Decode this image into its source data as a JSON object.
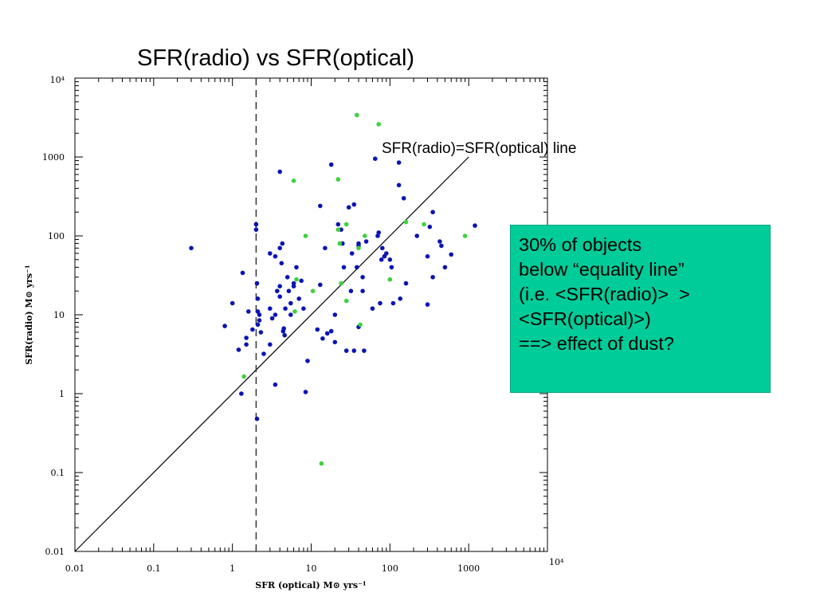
{
  "slide": {
    "title": "SFR(radio) vs SFR(optical)",
    "note_lines": [
      "30% of objects",
      "below “equality line”",
      "(i.e. <SFR(radio)>  >",
      "<SFR(optical)>)",
      "==> effect of dust?"
    ],
    "note_color": "#00cc99"
  },
  "chart_data": {
    "type": "scatter",
    "title": "",
    "xlabel": "SFR (optical) M⊙ yrs⁻¹",
    "ylabel": "SFR(radio) M⊙ yrs⁻¹",
    "xscale": "log",
    "yscale": "log",
    "xlim": [
      0.01,
      10000
    ],
    "ylim": [
      0.01,
      10000
    ],
    "x_tick_labels": [
      "0.01",
      "0.1",
      "1",
      "10",
      "100",
      "1000",
      "10⁴"
    ],
    "y_tick_labels": [
      "0.01",
      "0.1",
      "1",
      "10",
      "100",
      "1000",
      "10⁴"
    ],
    "grid": false,
    "reference_lines": [
      {
        "kind": "equality",
        "from": [
          0.01,
          0.01
        ],
        "to": [
          1000,
          1000
        ],
        "label": "SFR(radio)=SFR(optical) line",
        "style": "solid"
      },
      {
        "kind": "vertical",
        "x": 2.0,
        "style": "dashed"
      }
    ],
    "series": [
      {
        "color": "#0a14b4",
        "points": [
          [
            0.3,
            70
          ],
          [
            1.35,
            34
          ],
          [
            1.0,
            14
          ],
          [
            0.8,
            7.2
          ],
          [
            1.2,
            3.6
          ],
          [
            1.5,
            4.2
          ],
          [
            1.5,
            5.1
          ],
          [
            1.3,
            1.0
          ],
          [
            1.6,
            11
          ],
          [
            1.8,
            6.5
          ],
          [
            2.0,
            140
          ],
          [
            2.0,
            120
          ],
          [
            2.05,
            0.48
          ],
          [
            2.05,
            25
          ],
          [
            2.1,
            16
          ],
          [
            2.1,
            11
          ],
          [
            2.2,
            10
          ],
          [
            2.2,
            8.5
          ],
          [
            2.1,
            7.5
          ],
          [
            2.3,
            6.0
          ],
          [
            2.5,
            3.2
          ],
          [
            3.0,
            60
          ],
          [
            3.0,
            12
          ],
          [
            3.0,
            4.2
          ],
          [
            3.2,
            9.0
          ],
          [
            3.5,
            55
          ],
          [
            3.5,
            10
          ],
          [
            3.5,
            1.3
          ],
          [
            3.7,
            20
          ],
          [
            4.0,
            650
          ],
          [
            4.0,
            70
          ],
          [
            4.0,
            23
          ],
          [
            4.0,
            17
          ],
          [
            4.2,
            45
          ],
          [
            4.3,
            80
          ],
          [
            4.4,
            6.2
          ],
          [
            4.5,
            6.7
          ],
          [
            4.6,
            5.5
          ],
          [
            4.7,
            12
          ],
          [
            5.0,
            30
          ],
          [
            5.2,
            20
          ],
          [
            5.5,
            10
          ],
          [
            5.5,
            14
          ],
          [
            6.0,
            25
          ],
          [
            6.5,
            40
          ],
          [
            6.0,
            23
          ],
          [
            7.0,
            16
          ],
          [
            7.5,
            27
          ],
          [
            8.0,
            12
          ],
          [
            8.5,
            1.05
          ],
          [
            9.0,
            2.6
          ],
          [
            12,
            6.5
          ],
          [
            13,
            24
          ],
          [
            13,
            240
          ],
          [
            14,
            5.0
          ],
          [
            15,
            70
          ],
          [
            16,
            5.8
          ],
          [
            18,
            800
          ],
          [
            18,
            6.2
          ],
          [
            20,
            4.5
          ],
          [
            20,
            10
          ],
          [
            22,
            140
          ],
          [
            24,
            120
          ],
          [
            25,
            80
          ],
          [
            26,
            40
          ],
          [
            28,
            3.5
          ],
          [
            30,
            230
          ],
          [
            32,
            20
          ],
          [
            33,
            60
          ],
          [
            35,
            250
          ],
          [
            35,
            3.5
          ],
          [
            38,
            40
          ],
          [
            40,
            80
          ],
          [
            40,
            75
          ],
          [
            40,
            7.0
          ],
          [
            45,
            20
          ],
          [
            47,
            3.5
          ],
          [
            50,
            85
          ],
          [
            45,
            30
          ],
          [
            60,
            12
          ],
          [
            65,
            950
          ],
          [
            70,
            100
          ],
          [
            72,
            110
          ],
          [
            75,
            14
          ],
          [
            78,
            50
          ],
          [
            80,
            70
          ],
          [
            85,
            55
          ],
          [
            90,
            60
          ],
          [
            100,
            50
          ],
          [
            105,
            40
          ],
          [
            110,
            14
          ],
          [
            130,
            850
          ],
          [
            130,
            440
          ],
          [
            135,
            16
          ],
          [
            150,
            300
          ],
          [
            160,
            25
          ],
          [
            220,
            100
          ],
          [
            300,
            13.5
          ],
          [
            300,
            55
          ],
          [
            320,
            130
          ],
          [
            350,
            200
          ],
          [
            350,
            30
          ],
          [
            430,
            85
          ],
          [
            450,
            75
          ],
          [
            500,
            40
          ],
          [
            600,
            58
          ],
          [
            1200,
            135
          ]
        ]
      },
      {
        "color": "#3cd23c",
        "points": [
          [
            1.4,
            1.65
          ],
          [
            6.0,
            500
          ],
          [
            6.5,
            28
          ],
          [
            6.2,
            11
          ],
          [
            8.5,
            100
          ],
          [
            10.5,
            20
          ],
          [
            13.5,
            0.13
          ],
          [
            22,
            520
          ],
          [
            22,
            120
          ],
          [
            23,
            80
          ],
          [
            24,
            25
          ],
          [
            28,
            15
          ],
          [
            28,
            140
          ],
          [
            38,
            3400
          ],
          [
            40,
            70
          ],
          [
            42,
            7.5
          ],
          [
            48,
            100
          ],
          [
            72,
            2600
          ],
          [
            100,
            28
          ],
          [
            160,
            150
          ],
          [
            270,
            140
          ],
          [
            900,
            100
          ]
        ]
      }
    ]
  }
}
